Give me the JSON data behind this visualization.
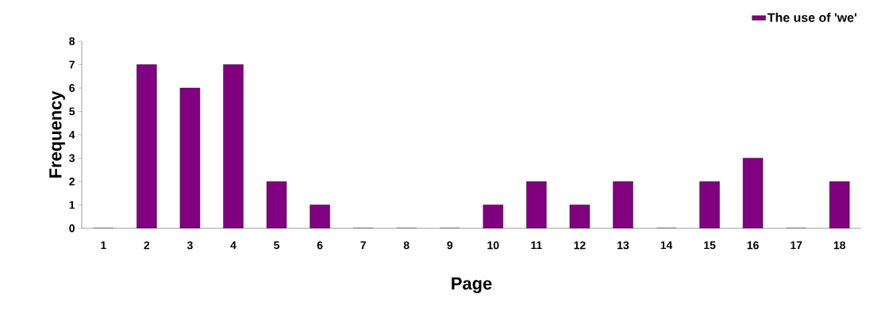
{
  "chart_data": {
    "type": "bar",
    "xlabel": "Page",
    "ylabel": "Frequency",
    "categories": [
      "1",
      "2",
      "3",
      "4",
      "5",
      "6",
      "7",
      "8",
      "9",
      "10",
      "11",
      "12",
      "13",
      "14",
      "15",
      "16",
      "17",
      "18"
    ],
    "series": [
      {
        "name": "The use of 'we'",
        "color": "#800080",
        "values": [
          0,
          7,
          6,
          7,
          2,
          1,
          0,
          0,
          0,
          1,
          2,
          1,
          2,
          0,
          2,
          3,
          0,
          2
        ]
      }
    ],
    "ylim": [
      0,
      8
    ],
    "yticks": [
      0,
      1,
      2,
      3,
      4,
      5,
      6,
      7,
      8
    ],
    "grid": false,
    "legend": "top right"
  }
}
